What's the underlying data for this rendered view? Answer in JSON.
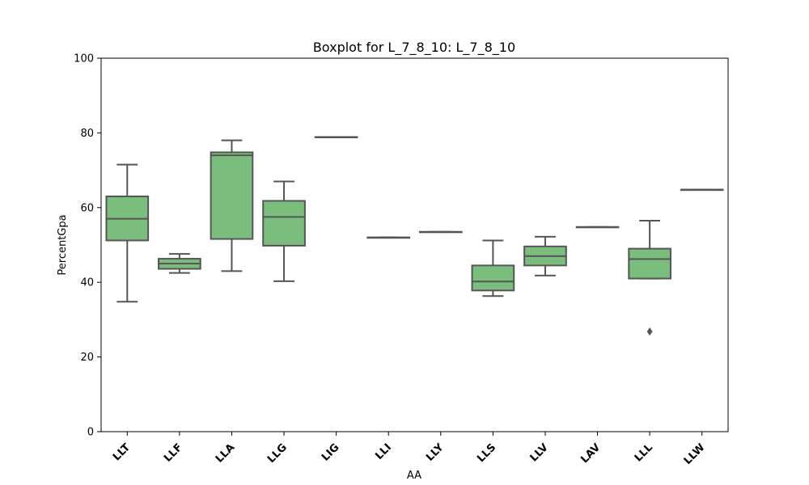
{
  "chart_data": {
    "type": "boxplot",
    "title": "Boxplot for L_7_8_10: L_7_8_10",
    "xlabel": "AA",
    "ylabel": "PercentGpa",
    "ylim": [
      0,
      100
    ],
    "yticks": [
      0,
      20,
      40,
      60,
      80,
      100
    ],
    "grid": false,
    "box_color": "#7bbd7d",
    "line_color": "#555555",
    "categories": [
      "LLT",
      "LLF",
      "LLA",
      "LLG",
      "LIG",
      "LLI",
      "LLY",
      "LLS",
      "LLV",
      "LAV",
      "LLL",
      "LLW"
    ],
    "boxes": [
      {
        "whislo": 34.8,
        "q1": 51.2,
        "med": 57.0,
        "q3": 63.0,
        "whishi": 71.5,
        "fliers": []
      },
      {
        "whislo": 42.5,
        "q1": 43.6,
        "med": 45.0,
        "q3": 46.3,
        "whishi": 47.6,
        "fliers": []
      },
      {
        "whislo": 43.0,
        "q1": 51.6,
        "med": 74.0,
        "q3": 74.8,
        "whishi": 78.0,
        "fliers": []
      },
      {
        "whislo": 40.3,
        "q1": 49.8,
        "med": 57.5,
        "q3": 61.8,
        "whishi": 67.0,
        "fliers": []
      },
      {
        "whislo": 78.9,
        "q1": 78.9,
        "med": 78.9,
        "q3": 78.9,
        "whishi": 78.9,
        "fliers": []
      },
      {
        "whislo": 52.0,
        "q1": 52.0,
        "med": 52.0,
        "q3": 52.0,
        "whishi": 52.0,
        "fliers": []
      },
      {
        "whislo": 53.5,
        "q1": 53.5,
        "med": 53.5,
        "q3": 53.5,
        "whishi": 53.5,
        "fliers": []
      },
      {
        "whislo": 36.3,
        "q1": 37.8,
        "med": 40.2,
        "q3": 44.5,
        "whishi": 51.2,
        "fliers": []
      },
      {
        "whislo": 41.8,
        "q1": 44.5,
        "med": 47.0,
        "q3": 49.6,
        "whishi": 52.2,
        "fliers": []
      },
      {
        "whislo": 54.8,
        "q1": 54.8,
        "med": 54.8,
        "q3": 54.8,
        "whishi": 54.8,
        "fliers": []
      },
      {
        "whislo": 41.0,
        "q1": 41.0,
        "med": 46.2,
        "q3": 49.0,
        "whishi": 56.5,
        "fliers": [
          26.8
        ]
      },
      {
        "whislo": 64.8,
        "q1": 64.8,
        "med": 64.8,
        "q3": 64.8,
        "whishi": 64.8,
        "fliers": []
      }
    ]
  }
}
